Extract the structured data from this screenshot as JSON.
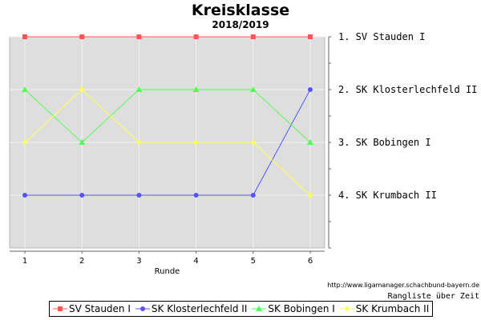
{
  "chart_data": {
    "type": "line",
    "title": "Kreisklasse",
    "subtitle": "2018/2019",
    "xlabel": "Runde",
    "categories": [
      "1",
      "2",
      "3",
      "4",
      "5",
      "6"
    ],
    "ylim": [
      1,
      5
    ],
    "y_inverted": true,
    "grid": true,
    "legend_position": "bottom",
    "rank_labels": [
      "1. SV Stauden I",
      "2. SK Klosterlechfeld II",
      "3. SK Bobingen I",
      "4. SK Krumbach II"
    ],
    "series": [
      {
        "name": "SV Stauden I",
        "values": [
          1,
          1,
          1,
          1,
          1,
          1
        ],
        "color": "#ff5555",
        "marker": "square"
      },
      {
        "name": "SK Klosterlechfeld II",
        "values": [
          4,
          4,
          4,
          4,
          4,
          2
        ],
        "color": "#5555ff",
        "marker": "circle"
      },
      {
        "name": "SK Bobingen I",
        "values": [
          2,
          3,
          2,
          2,
          2,
          3
        ],
        "color": "#55ff55",
        "marker": "triangle"
      },
      {
        "name": "SK Krumbach II",
        "values": [
          3,
          2,
          3,
          3,
          3,
          4
        ],
        "color": "#ffff55",
        "marker": "diamond"
      }
    ],
    "source_url": "http://www.ligamanager.schachbund-bayern.de",
    "caption": "Rangliste über Zeit",
    "plot_background": "#dedede"
  }
}
